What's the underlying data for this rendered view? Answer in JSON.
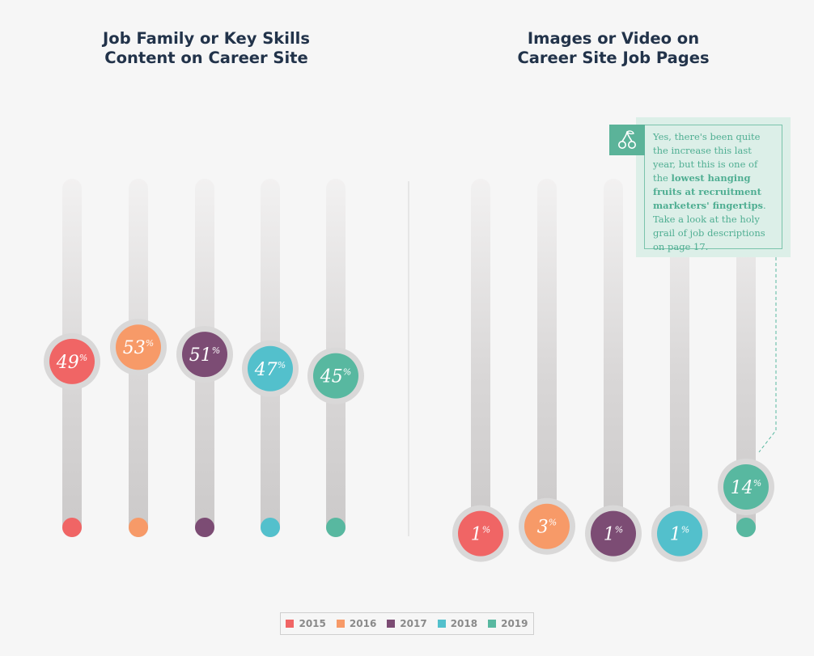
{
  "colors": {
    "2015": "#f06565",
    "2016": "#f79a68",
    "2017": "#7c4c74",
    "2018": "#53c0cc",
    "2019": "#58b8a0",
    "note_text": "#4fae92",
    "note_bg": "#dcefe8"
  },
  "chart_data": [
    {
      "type": "bar",
      "title": "Job Family or Key Skills\nContent on Career Site",
      "categories": [
        "2015",
        "2016",
        "2017",
        "2018",
        "2019"
      ],
      "values": [
        49,
        53,
        51,
        47,
        45
      ],
      "unit": "%",
      "ylim": [
        0,
        100
      ],
      "grid": false,
      "legend": "bottom"
    },
    {
      "type": "bar",
      "title": "Images or Video on\nCareer Site Job Pages",
      "categories": [
        "2015",
        "2016",
        "2017",
        "2018",
        "2019"
      ],
      "values": [
        1,
        3,
        1,
        1,
        14
      ],
      "unit": "%",
      "ylim": [
        0,
        100
      ],
      "grid": false,
      "legend": "bottom"
    }
  ],
  "note": {
    "icon": "cherry-icon",
    "text_before": "Yes, there's been quite the increase this last year, but this is one of the ",
    "text_bold": "lowest hanging fruits at recruitment marketers' fingertips",
    "text_after": ". Take a look at the holy grail of job descriptions on page 17."
  },
  "legend": {
    "items": [
      {
        "label": "2015",
        "color": "#f06565"
      },
      {
        "label": "2016",
        "color": "#f79a68"
      },
      {
        "label": "2017",
        "color": "#7c4c74"
      },
      {
        "label": "2018",
        "color": "#53c0cc"
      },
      {
        "label": "2019",
        "color": "#58b8a0"
      }
    ]
  }
}
